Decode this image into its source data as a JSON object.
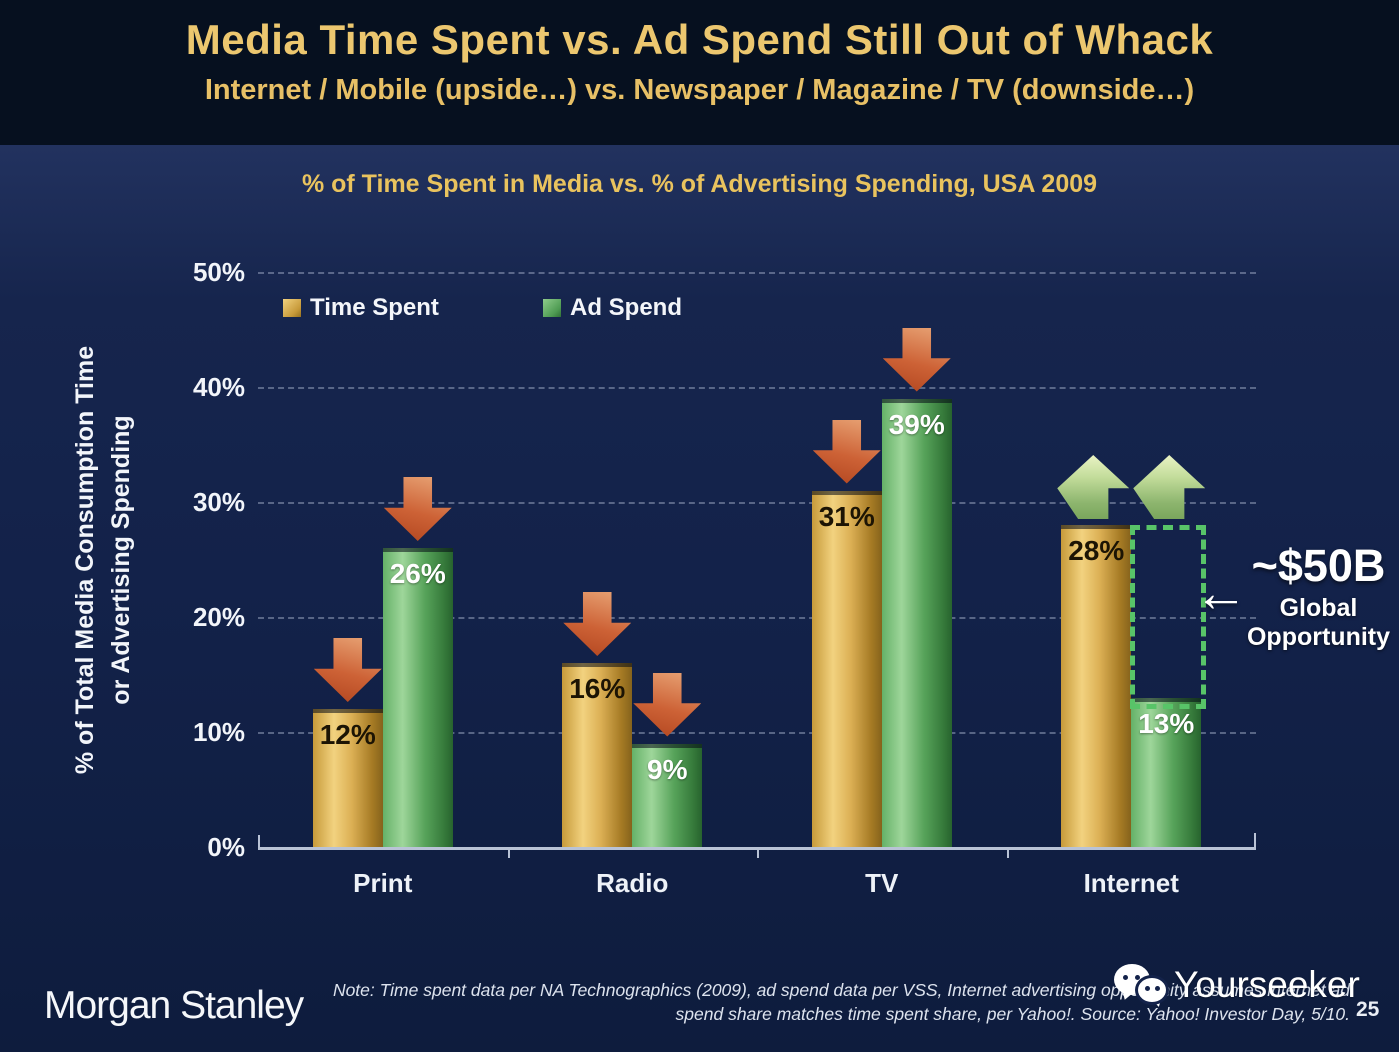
{
  "slide": {
    "title": "Media Time Spent vs. Ad Spend Still Out of Whack",
    "subtitle": "Internet / Mobile (upside…) vs. Newspaper / Magazine / TV (downside…)"
  },
  "chart_data": {
    "type": "bar",
    "title": "% of Time Spent in Media vs. % of Advertising Spending, USA 2009",
    "ylabel_line1": "% of Total Media Consumption Time",
    "ylabel_line2": "or Advertising Spending",
    "categories": [
      "Print",
      "Radio",
      "TV",
      "Internet"
    ],
    "series": [
      {
        "name": "Time Spent",
        "color": "#D9A83E",
        "values": [
          12,
          16,
          31,
          28
        ]
      },
      {
        "name": "Ad Spend",
        "color": "#55A659",
        "values": [
          26,
          9,
          39,
          13
        ]
      }
    ],
    "yticks": [
      50,
      40,
      30,
      20,
      10,
      0
    ],
    "ytick_suffix": "%",
    "ylim": [
      0,
      50
    ],
    "grid": "dashed-horizontal",
    "legend_position": "top-left-inside",
    "annotations": {
      "trend_arrows": [
        {
          "category": "Print",
          "directions": [
            "down",
            "down"
          ]
        },
        {
          "category": "Radio",
          "directions": [
            "down",
            "down"
          ]
        },
        {
          "category": "TV",
          "directions": [
            "down",
            "down"
          ]
        },
        {
          "category": "Internet",
          "directions": [
            "up",
            "up"
          ]
        }
      ],
      "opportunity": {
        "value": "~$50B",
        "label_line1": "Global",
        "label_line2": "Opportunity",
        "arrow": "←",
        "box_category": "Internet",
        "box_from_pct": 13,
        "box_to_pct": 28
      }
    }
  },
  "footer": {
    "brand": "Morgan Stanley",
    "note_line1": "Note: Time spent data per NA Technographics (2009), ad spend data per VSS, Internet advertising opportunity assumes internet ad",
    "note_line2": "spend share matches time spent share, per Yahoo!. Source: Yahoo! Investor Day, 5/10.",
    "watermark": "Yourseeker",
    "page_number": "25"
  },
  "colors": {
    "header_background": "#06101F",
    "body_background": "#13224A",
    "title_gold": "#ECC76F",
    "bar_gold": "#D9A83E",
    "bar_green": "#55A659",
    "arrow_down_red": "#C95B2E",
    "arrow_up_green": "#A8CC7E",
    "opportunity_box_green": "#58C468",
    "axis_line": "#B9C3D6"
  }
}
